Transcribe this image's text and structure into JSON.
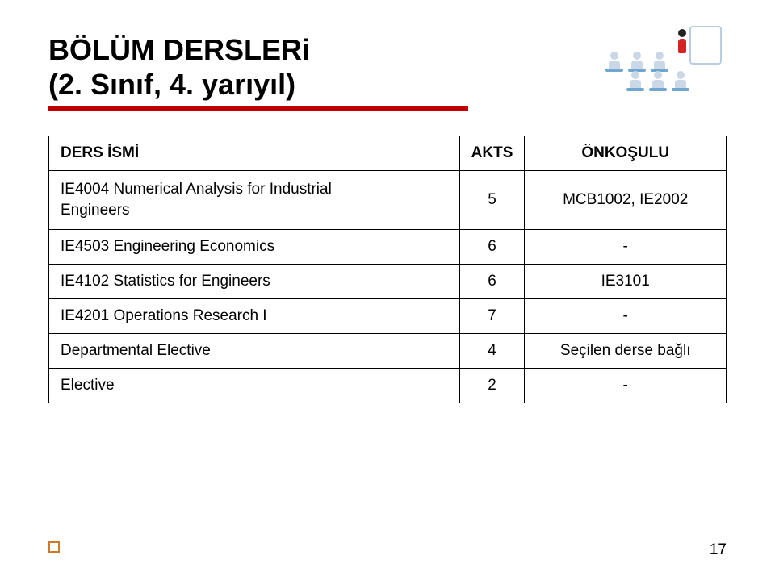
{
  "title": {
    "line1": "BÖLÜM DERSLERi",
    "line2": "(2. Sınıf, 4. yarıyıl)",
    "fontsize": 36,
    "color": "#000000",
    "underline_color": "#c00000",
    "underline_width": 520,
    "underline_height": 6
  },
  "table": {
    "columns": {
      "name": "DERS İSMİ",
      "akts": "AKTS",
      "prereq": "ÖNKOŞULU"
    },
    "column_widths": {
      "name": 510,
      "akts": 80,
      "prereq": 250
    },
    "border_color": "#000000",
    "cell_fontsize": 19,
    "header_fontsize": 19,
    "rows": [
      {
        "name_line1": "IE4004 Numerical Analysis for Industrial",
        "name_line2": "Engineers",
        "akts": "5",
        "prereq": "MCB1002, IE2002"
      },
      {
        "name": "IE4503 Engineering Economics",
        "akts": "6",
        "prereq": "-"
      },
      {
        "name": "IE4102 Statistics for Engineers",
        "akts": "6",
        "prereq": "IE3101"
      },
      {
        "name": "IE4201 Operations Research I",
        "akts": "7",
        "prereq": "-"
      },
      {
        "name": "Departmental Elective",
        "akts": "4",
        "prereq": "Seçilen derse bağlı"
      },
      {
        "name": "Elective",
        "akts": "2",
        "prereq": "-"
      }
    ]
  },
  "decor": {
    "board_border": "#b9cde0",
    "seat_body": "#c9d7e6",
    "seat_desk": "#6fa7cf",
    "presenter_body": "#d62324",
    "presenter_head": "#222222"
  },
  "footer": {
    "page_number": "17",
    "square_border": "#cc7a29"
  },
  "background_color": "#ffffff"
}
